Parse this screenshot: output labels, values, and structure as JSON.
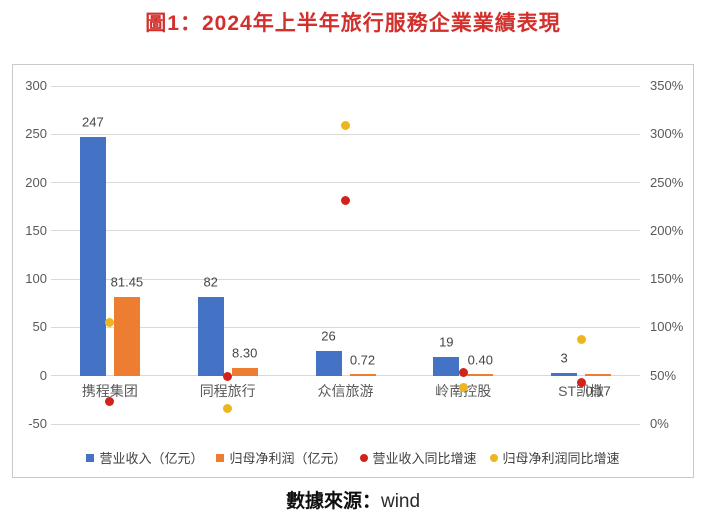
{
  "title": "圖1：2024年上半年旅行服務企業業績表現",
  "source": {
    "label": "數據來源：",
    "value": "wind"
  },
  "colors": {
    "revenue_bar": "#4472c4",
    "profit_bar": "#ed7d31",
    "revenue_growth_dot": "#d2231b",
    "profit_growth_dot": "#edb51e",
    "title_red": "#d2302c",
    "gridline": "#d9d9d9",
    "axis_text": "#595959"
  },
  "chart_data": {
    "type": "bar",
    "subtype": "combo-bar-scatter-dual-axis",
    "categories": [
      "携程集团",
      "同程旅行",
      "众信旅游",
      "岭南控股",
      "ST凯撒"
    ],
    "series": [
      {
        "name": "营业收入（亿元）",
        "kind": "bar",
        "axis": "left",
        "color": "#4472c4",
        "values": [
          247,
          82,
          26,
          19,
          3
        ],
        "labels": [
          "247",
          "82",
          "26",
          "19",
          "3"
        ]
      },
      {
        "name": "归母净利润（亿元）",
        "kind": "bar",
        "axis": "left",
        "color": "#ed7d31",
        "values": [
          81.45,
          8.3,
          0.72,
          0.4,
          0.17
        ],
        "labels": [
          "81.45",
          "8.30",
          "0.72",
          "0.40",
          "0.17"
        ]
      },
      {
        "name": "营业收入同比增速",
        "kind": "scatter",
        "axis": "right",
        "color": "#d2231b",
        "values_pct": [
          23,
          49,
          231,
          53,
          43
        ]
      },
      {
        "name": "归母净利润同比增速",
        "kind": "scatter",
        "axis": "right",
        "color": "#edb51e",
        "values_pct": [
          105,
          16,
          309,
          38,
          87
        ]
      }
    ],
    "left_axis": {
      "min": -50,
      "max": 300,
      "step": 50,
      "ticks": [
        "300",
        "250",
        "200",
        "150",
        "100",
        "50",
        "0",
        "-50"
      ]
    },
    "right_axis": {
      "min": 0,
      "max": 350,
      "step": 50,
      "ticks": [
        "350%",
        "300%",
        "250%",
        "200%",
        "150%",
        "100%",
        "50%",
        "0%"
      ]
    },
    "grid": true,
    "legend_position": "bottom",
    "profit_label_below_axis_categories": [
      "ST凯撒"
    ]
  }
}
